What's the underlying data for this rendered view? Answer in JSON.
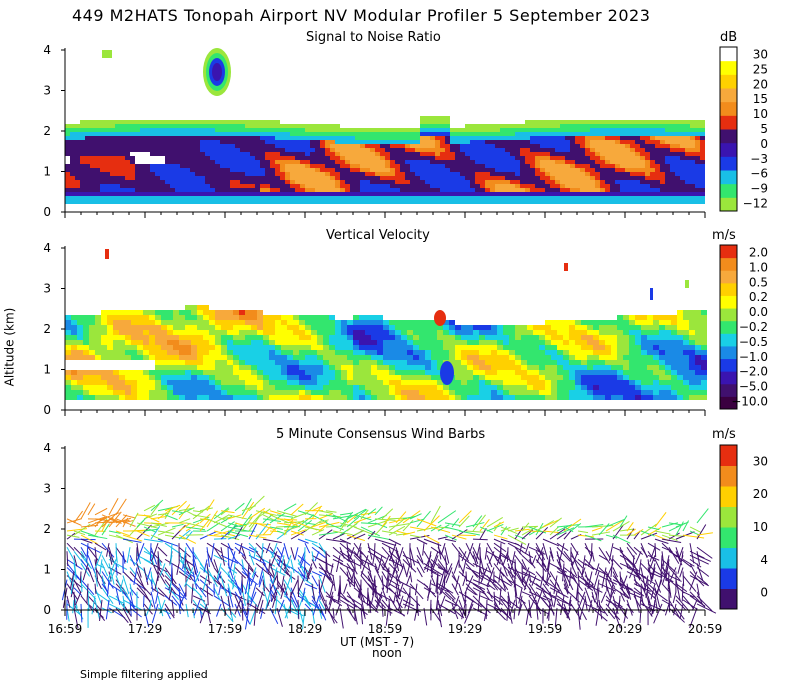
{
  "title": "449 M2HATS Tonopah Airport NV Modular Profiler  5 September 2023",
  "y_axis_label": "Altitude (km)",
  "x_axis_label": "UT  (MST - 7)",
  "x_axis_sublabel": "noon",
  "footnote": "Simple filtering applied",
  "x_ticks": [
    "16:59",
    "17:29",
    "17:59",
    "18:29",
    "18:59",
    "19:29",
    "19:59",
    "20:29",
    "20:59"
  ],
  "y_ticks": [
    "0",
    "1",
    "2",
    "3",
    "4"
  ],
  "colors": {
    "snr_scale": [
      "#9be63c",
      "#33e66e",
      "#19bfe6",
      "#1a3ae6",
      "#3a14b0",
      "#40106e",
      "#e62e10",
      "#f28c1c",
      "#f7a93c",
      "#ffd000",
      "#ffff00",
      "#ffffff"
    ],
    "vv_scale": [
      "#3a0040",
      "#40106e",
      "#3a14b0",
      "#1a3ae6",
      "#1a8ae6",
      "#19d0e6",
      "#33e66e",
      "#9be63c",
      "#ffff00",
      "#ffd000",
      "#f7a93c",
      "#f28c1c",
      "#e62e10"
    ],
    "wind_scale": [
      "#40106e",
      "#1a3ae6",
      "#19bfe6",
      "#33e66e",
      "#9be63c",
      "#ffd000",
      "#f28c1c",
      "#e62e10"
    ]
  },
  "chart_data": [
    {
      "type": "heatmap",
      "title": "Signal to Noise Ratio",
      "units": "dB",
      "x": [
        "16:59",
        "20:59"
      ],
      "ylim": [
        0,
        4
      ],
      "colorbar_ticks": [
        "30",
        "25",
        "20",
        "15",
        "10",
        "5",
        "0",
        "−3",
        "−6",
        "−9",
        "−12"
      ],
      "colorbar_values": [
        -12,
        -9,
        -6,
        -3,
        0,
        5,
        10,
        15,
        20,
        25,
        30
      ]
    },
    {
      "type": "heatmap",
      "title": "Vertical Velocity",
      "units": "m/s",
      "x": [
        "16:59",
        "20:59"
      ],
      "ylim": [
        0,
        4
      ],
      "colorbar_ticks": [
        "2.0",
        "1.0",
        "0.5",
        "0.2",
        "0.0",
        "−0.2",
        "−0.5",
        "−1.0",
        "−2.0",
        "−5.0",
        "−10.0"
      ],
      "colorbar_values": [
        -10.0,
        -5.0,
        -2.0,
        -1.0,
        -0.5,
        -0.2,
        0.0,
        0.2,
        0.5,
        1.0,
        2.0
      ]
    },
    {
      "type": "scatter",
      "title": "5 Minute Consensus Wind Barbs",
      "units": "m/s",
      "x": [
        "16:59",
        "20:59"
      ],
      "ylim": [
        0,
        4
      ],
      "colorbar_ticks": [
        "30",
        "20",
        "10",
        "4",
        "0"
      ],
      "colorbar_values": [
        0,
        4,
        10,
        20,
        30
      ]
    }
  ]
}
